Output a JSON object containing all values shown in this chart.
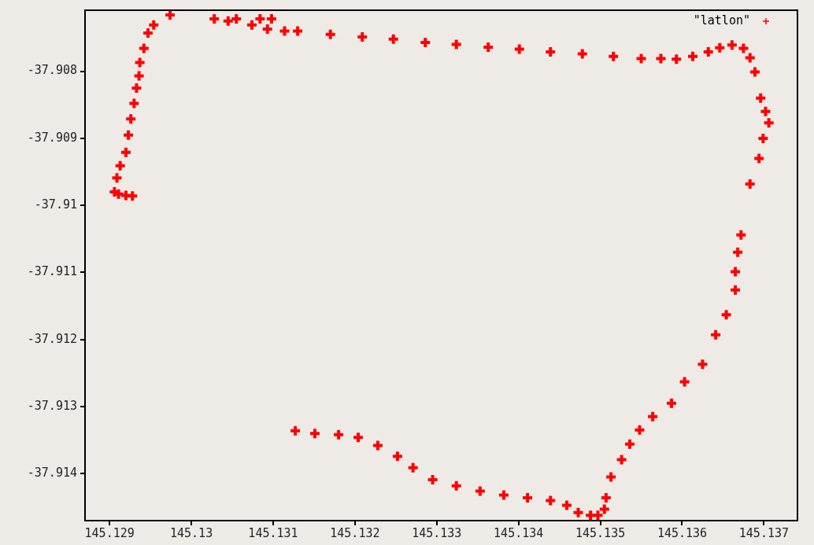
{
  "chart_data": {
    "type": "scatter",
    "xlim": [
      145.1287,
      145.13741
    ],
    "ylim": [
      -37.9147,
      -37.90709
    ],
    "xticks": [
      145.129,
      145.13,
      145.131,
      145.132,
      145.133,
      145.134,
      145.135,
      145.136,
      145.137
    ],
    "yticks": [
      -37.914,
      -37.913,
      -37.912,
      -37.911,
      -37.91,
      -37.909,
      -37.908
    ],
    "legend": "top right",
    "marker": "cross",
    "series": [
      {
        "name": "\"latlon\"",
        "color": "#ff0000",
        "x": [
          145.12974,
          145.12954,
          145.12947,
          145.12942,
          145.12937,
          145.12936,
          145.12933,
          145.1293,
          145.12926,
          145.12923,
          145.1292,
          145.12913,
          145.12909,
          145.12906,
          145.12911,
          145.1292,
          145.12928,
          145.13028,
          145.13055,
          145.13084,
          145.13098,
          145.13045,
          145.13074,
          145.13093,
          145.13114,
          145.1313,
          145.1317,
          145.13209,
          145.13247,
          145.13286,
          145.13324,
          145.13363,
          145.13401,
          145.13439,
          145.13478,
          145.13516,
          145.1355,
          145.13574,
          145.13593,
          145.13613,
          145.13632,
          145.13646,
          145.13661,
          145.13675,
          145.13683,
          145.13689,
          145.13696,
          145.13702,
          145.13706,
          145.13699,
          145.13694,
          145.13683,
          145.13672,
          145.13668,
          145.13665,
          145.13665,
          145.13654,
          145.13641,
          145.13625,
          145.13603,
          145.13587,
          145.13564,
          145.13548,
          145.13536,
          145.13526,
          145.13513,
          145.13507,
          145.13505,
          145.13497,
          145.13127,
          145.13151,
          145.1318,
          145.13204,
          145.13228,
          145.13252,
          145.13271,
          145.13295,
          145.13324,
          145.13353,
          145.13382,
          145.13411,
          145.13439,
          145.13459,
          145.13473,
          145.13488
        ],
        "values": [
          -37.90716,
          -37.90731,
          -37.90743,
          -37.90766,
          -37.90787,
          -37.90807,
          -37.90825,
          -37.90848,
          -37.90871,
          -37.90895,
          -37.90921,
          -37.90941,
          -37.90959,
          -37.9098,
          -37.90983,
          -37.90985,
          -37.90986,
          -37.90722,
          -37.90722,
          -37.90722,
          -37.90722,
          -37.90725,
          -37.90731,
          -37.90737,
          -37.9074,
          -37.9074,
          -37.90745,
          -37.90749,
          -37.90752,
          -37.90757,
          -37.9076,
          -37.90764,
          -37.90767,
          -37.90771,
          -37.90774,
          -37.90778,
          -37.90781,
          -37.90781,
          -37.90782,
          -37.90778,
          -37.90771,
          -37.90765,
          -37.90761,
          -37.90766,
          -37.9078,
          -37.90801,
          -37.9084,
          -37.9086,
          -37.90877,
          -37.909,
          -37.9093,
          -37.90968,
          -37.91044,
          -37.9107,
          -37.91099,
          -37.91126,
          -37.91163,
          -37.91193,
          -37.91237,
          -37.91263,
          -37.91295,
          -37.91315,
          -37.91335,
          -37.91356,
          -37.91379,
          -37.91405,
          -37.91436,
          -37.91453,
          -37.91462,
          -37.91336,
          -37.9134,
          -37.91342,
          -37.91346,
          -37.91358,
          -37.91374,
          -37.91391,
          -37.91409,
          -37.91418,
          -37.91426,
          -37.91432,
          -37.91436,
          -37.9144,
          -37.91447,
          -37.91458,
          -37.91462
        ]
      }
    ]
  }
}
